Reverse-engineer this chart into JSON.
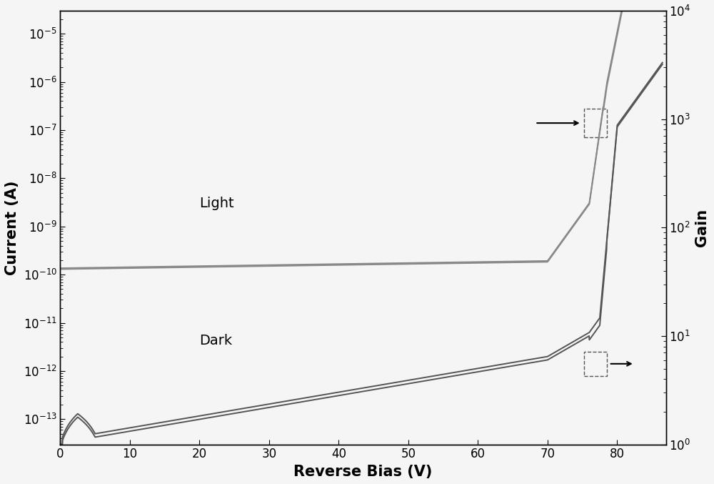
{
  "xlabel": "Reverse Bias (V)",
  "ylabel_left": "Current (A)",
  "ylabel_right": "Gain",
  "xlim": [
    0,
    87
  ],
  "ylim_left": [
    3e-14,
    3e-05
  ],
  "ylim_right": [
    1.0,
    10000.0
  ],
  "x_ticks": [
    0,
    10,
    20,
    30,
    40,
    50,
    60,
    70,
    80
  ],
  "label_light": "Light",
  "label_dark": "Dark",
  "line_color_light": "#888888",
  "line_color_dark": "#555555",
  "line_color_dark2": "#777777",
  "background_color": "#f5f5f5",
  "xlabel_fontsize": 15,
  "ylabel_fontsize": 15,
  "tick_fontsize": 12,
  "annotation_fontsize": 14,
  "figsize": [
    10.0,
    6.77
  ],
  "dpi": 100
}
